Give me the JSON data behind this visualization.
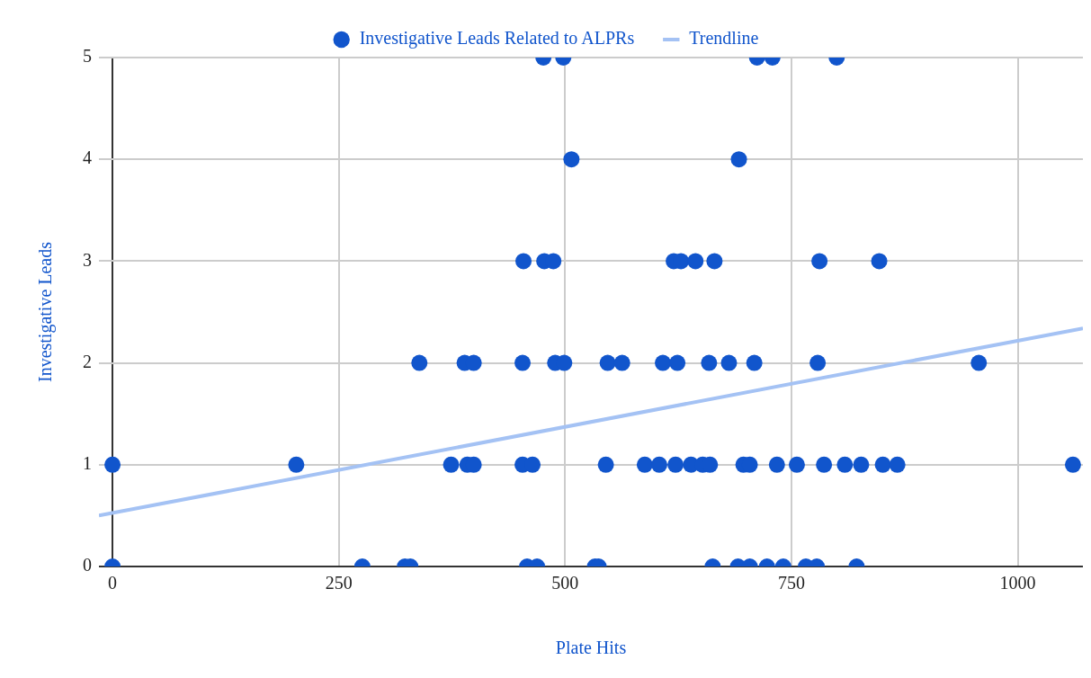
{
  "chart_data": {
    "type": "scatter",
    "xlabel": "Plate Hits",
    "ylabel": "Investigative Leads",
    "xlim": [
      -15,
      1072
    ],
    "ylim": [
      0,
      5
    ],
    "xticks": [
      0,
      250,
      500,
      750,
      1000
    ],
    "yticks": [
      0,
      1,
      2,
      3,
      4,
      5
    ],
    "grid": true,
    "legend": "top",
    "marker": "circle",
    "series": [
      {
        "name": "Investigative Leads Related to ALPRs",
        "color": "#1155cc",
        "x": [
          476,
          498,
          712,
          729,
          800,
          507,
          692,
          454,
          477,
          487,
          620,
          628,
          644,
          665,
          781,
          847,
          339,
          389,
          399,
          453,
          489,
          499,
          547,
          563,
          608,
          624,
          659,
          681,
          709,
          779,
          957,
          0,
          203,
          374,
          392,
          399,
          453,
          464,
          545,
          588,
          604,
          622,
          639,
          652,
          660,
          697,
          704,
          734,
          756,
          786,
          809,
          827,
          851,
          867,
          1061,
          0,
          276,
          323,
          329,
          458,
          469,
          533,
          537,
          663,
          691,
          704,
          723,
          741,
          766,
          778,
          822
        ],
        "values": [
          5,
          5,
          5,
          5,
          5,
          4,
          4,
          3,
          3,
          3,
          3,
          3,
          3,
          3,
          3,
          3,
          2,
          2,
          2,
          2,
          2,
          2,
          2,
          2,
          2,
          2,
          2,
          2,
          2,
          2,
          2,
          1,
          1,
          1,
          1,
          1,
          1,
          1,
          1,
          1,
          1,
          1,
          1,
          1,
          1,
          1,
          1,
          1,
          1,
          1,
          1,
          1,
          1,
          1,
          1,
          0,
          0,
          0,
          0,
          0,
          0,
          0,
          0,
          0,
          0,
          0,
          0,
          0,
          0,
          0,
          0
        ]
      },
      {
        "name": "Trendline",
        "color": "#a4c2f4",
        "type": "line",
        "marker": "none",
        "x": [
          -15,
          1072
        ],
        "values": [
          0.5,
          2.34
        ]
      }
    ]
  }
}
